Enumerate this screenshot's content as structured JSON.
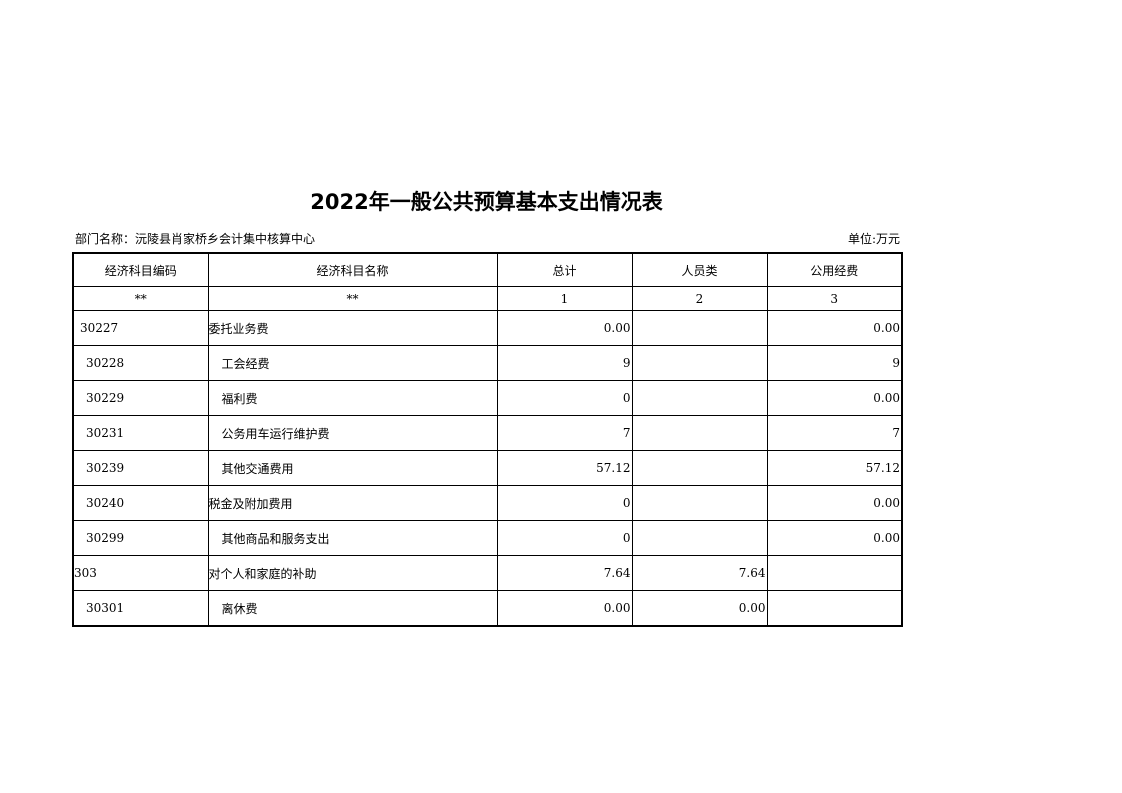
{
  "title": "2022年一般公共预算基本支出情况表",
  "department": "部门名称：沅陵县肖家桥乡会计集中核算中心",
  "unit": "单位:万元",
  "headers": [
    "经济科目编码",
    "经济科目名称",
    "总计",
    "人员类",
    "公用经费"
  ],
  "subheaders": [
    "**",
    "**",
    "1",
    "2",
    "3"
  ],
  "rows": [
    {
      "code": "30227",
      "name": "委托业务费",
      "total": "0.00",
      "personnel": "",
      "public": "0.00",
      "code_indent": 1,
      "name_indent": 0
    },
    {
      "code": "30228",
      "name": "工会经费",
      "total": "9",
      "personnel": "",
      "public": "9",
      "code_indent": 2,
      "name_indent": 1
    },
    {
      "code": "30229",
      "name": "福利费",
      "total": "0",
      "personnel": "",
      "public": "0.00",
      "code_indent": 2,
      "name_indent": 1
    },
    {
      "code": "30231",
      "name": "公务用车运行维护费",
      "total": "7",
      "personnel": "",
      "public": "7",
      "code_indent": 2,
      "name_indent": 1
    },
    {
      "code": "30239",
      "name": "其他交通费用",
      "total": "57.12",
      "personnel": "",
      "public": "57.12",
      "code_indent": 2,
      "name_indent": 1
    },
    {
      "code": "30240",
      "name": "税金及附加费用",
      "total": "0",
      "personnel": "",
      "public": "0.00",
      "code_indent": 2,
      "name_indent": 0
    },
    {
      "code": "30299",
      "name": "其他商品和服务支出",
      "total": "0",
      "personnel": "",
      "public": "0.00",
      "code_indent": 2,
      "name_indent": 1
    },
    {
      "code": "303",
      "name": "对个人和家庭的补助",
      "total": "7.64",
      "personnel": "7.64",
      "public": "",
      "code_indent": 0,
      "name_indent": 0
    },
    {
      "code": "30301",
      "name": "离休费",
      "total": "0.00",
      "personnel": "0.00",
      "public": "",
      "code_indent": 2,
      "name_indent": 1
    }
  ]
}
